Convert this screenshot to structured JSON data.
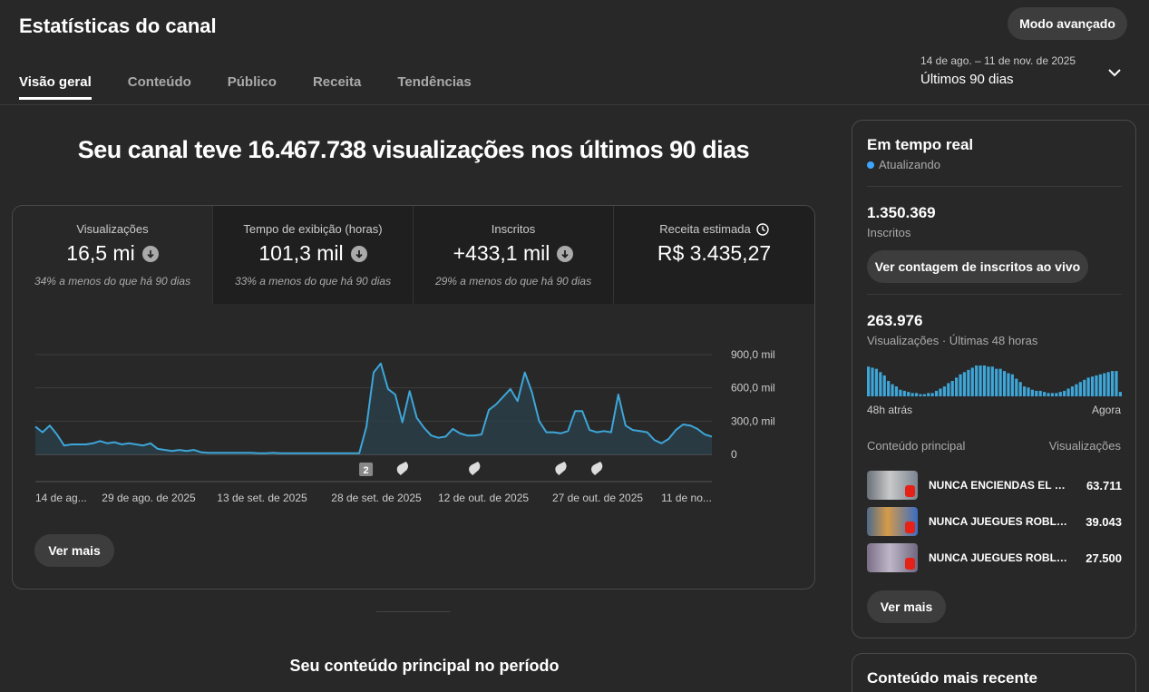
{
  "header": {
    "title": "Estatísticas do canal",
    "advanced_button": "Modo avançado",
    "tabs": [
      {
        "label": "Visão geral",
        "active": true
      },
      {
        "label": "Conteúdo",
        "active": false
      },
      {
        "label": "Público",
        "active": false
      },
      {
        "label": "Receita",
        "active": false
      },
      {
        "label": "Tendências",
        "active": false
      }
    ],
    "date_range": {
      "dates": "14 de ago. – 11 de nov. de 2025",
      "label": "Últimos 90 dias"
    }
  },
  "headline": "Seu canal teve 16.467.738 visualizações nos últimos 90 dias",
  "metrics": [
    {
      "label": "Visualizações",
      "value": "16,5 mi",
      "trend": "down",
      "sub": "34% a menos do que há 90 dias"
    },
    {
      "label": "Tempo de exibição (horas)",
      "value": "101,3 mil",
      "trend": "down",
      "sub": "33% a menos do que há 90 dias"
    },
    {
      "label": "Inscritos",
      "value": "+433,1 mil",
      "trend": "down",
      "sub": "29% a menos do que há 90 dias"
    },
    {
      "label": "Receita estimada",
      "value": "R$ 3.435,27",
      "trend": "none",
      "sub": ""
    }
  ],
  "chart_data": {
    "type": "area",
    "series": [
      {
        "values": [
          250,
          200,
          260,
          180,
          80,
          90,
          90,
          90,
          100,
          120,
          100,
          110,
          90,
          100,
          90,
          80,
          100,
          50,
          40,
          30,
          40,
          30,
          40,
          20,
          15,
          15,
          15,
          15,
          15,
          15,
          15,
          10,
          10,
          15,
          10,
          10,
          10,
          10,
          10,
          10,
          10,
          10,
          10,
          10,
          10,
          10,
          250,
          740,
          820,
          590,
          540,
          290,
          570,
          330,
          240,
          170,
          150,
          160,
          230,
          190,
          170,
          170,
          180,
          400,
          450,
          520,
          590,
          480,
          740,
          560,
          300,
          200,
          200,
          190,
          210,
          390,
          390,
          220,
          200,
          210,
          200,
          540,
          260,
          220,
          210,
          200,
          130,
          100,
          140,
          220,
          270,
          260,
          230,
          180,
          160
        ]
      }
    ],
    "x_tick_labels": [
      "14 de ag...",
      "29 de ago. de 2025",
      "13 de set. de 2025",
      "28 de set. de 2025",
      "12 de out. de 2025",
      "27 de out. de 2025",
      "11 de no..."
    ],
    "y_tick_labels": [
      "900,0 mil",
      "600,0 mil",
      "300,0 mil",
      "0"
    ],
    "ylim": [
      0,
      900000
    ],
    "grid": true,
    "markers": [
      {
        "kind": "count",
        "label": "2",
        "index": 46
      },
      {
        "kind": "short",
        "index": 51
      },
      {
        "kind": "short",
        "index": 61
      },
      {
        "kind": "short",
        "index": 73
      },
      {
        "kind": "short",
        "index": 78
      }
    ],
    "colors": {
      "line": "#3ea6d8",
      "fill": "#2a3f4a"
    }
  },
  "card_button": "Ver mais",
  "section_title": "Seu conteúdo principal no período",
  "realtime": {
    "title": "Em tempo real",
    "status": "Atualizando",
    "subscribers": {
      "value": "1.350.369",
      "label": "Inscritos"
    },
    "live_count_button": "Ver contagem de inscritos ao vivo",
    "views": {
      "value": "263.976",
      "label": "Visualizações · Últimas 48 horas"
    },
    "mini_chart_values": [
      27,
      26,
      25,
      22,
      19,
      14,
      11,
      9,
      6,
      5,
      4,
      3,
      3,
      2,
      2,
      3,
      3,
      5,
      7,
      9,
      12,
      14,
      17,
      20,
      22,
      24,
      26,
      28,
      28,
      28,
      27,
      27,
      25,
      25,
      23,
      21,
      20,
      16,
      13,
      9,
      8,
      6,
      5,
      5,
      4,
      3,
      3,
      3,
      4,
      5,
      7,
      9,
      11,
      13,
      15,
      17,
      18,
      19,
      20,
      21,
      22,
      23,
      23,
      4
    ],
    "axis_start": "48h atrás",
    "axis_end": "Agora",
    "top_content_header": "Conteúdo principal",
    "top_views_header": "Visualizações",
    "top_content": [
      {
        "title": "NUNCA ENCIENDAS EL ROBLOX...",
        "views": "63.711"
      },
      {
        "title": "NUNCA JUEGUES ROBLOX...",
        "views": "39.043"
      },
      {
        "title": "NUNCA JUEGUES ROBLOX...",
        "views": "27.500"
      }
    ],
    "button": "Ver mais"
  },
  "recent": {
    "title": "Conteúdo mais recente"
  }
}
